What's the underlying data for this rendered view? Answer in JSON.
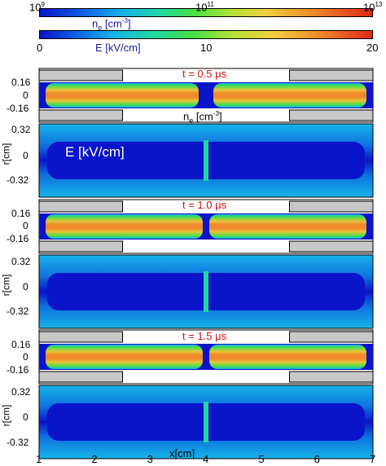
{
  "chart_data": {
    "type": "heatmap",
    "colorbars": [
      {
        "title": "n",
        "title_sub": "e",
        "title_unit": " [cm",
        "title_sup": "-3",
        "title_close": "]",
        "ticks": [
          {
            "base": "10",
            "exp": "9"
          },
          {
            "base": "10",
            "exp": "11"
          },
          {
            "base": "10",
            "exp": "13"
          }
        ],
        "scale": "log",
        "range": [
          1000000000.0,
          10000000000000.0
        ]
      },
      {
        "title": "E [kV/cm]",
        "ticks": [
          "0",
          "10",
          "20"
        ],
        "scale": "linear",
        "range": [
          0,
          20
        ]
      }
    ],
    "x_axis": {
      "label": "x[cm]",
      "range": [
        1,
        7
      ],
      "ticks": [
        "1",
        "2",
        "3",
        "4",
        "5",
        "6",
        "7"
      ]
    },
    "panels": [
      {
        "time_label": "t = 0.5 μs",
        "ne": {
          "ylabels": [
            "0.16",
            "0",
            "-0.16"
          ],
          "unit_label": {
            "n": "n",
            "sub": "e",
            "unit": " [cm",
            "sup": "-3",
            "close": "]"
          }
        },
        "E": {
          "ylabels": [
            "0.32",
            "0",
            "-0.32"
          ],
          "ylabel": "r[cm]",
          "field_label": "E [kV/cm]"
        }
      },
      {
        "time_label": "t = 1.0 μs",
        "ne": {
          "ylabels": [
            "0.16",
            "0",
            "-0.16"
          ]
        },
        "E": {
          "ylabels": [
            "0.32",
            "0",
            "-0.32"
          ],
          "ylabel": "r[cm]"
        }
      },
      {
        "time_label": "t = 1.5 μs",
        "ne": {
          "ylabels": [
            "0.16",
            "0",
            "-0.16"
          ]
        },
        "E": {
          "ylabels": [
            "0.32",
            "0",
            "-0.32"
          ],
          "ylabel": "r[cm]"
        }
      }
    ],
    "electrodes": {
      "left_x": [
        1,
        2.5
      ],
      "right_x": [
        5.5,
        7
      ]
    },
    "colors": {
      "plasma_core": "#f08a2a",
      "plasma_edge": "#e8c43a",
      "plasma_fringe": "#48e046",
      "background": "#0a14c8",
      "electrode": "#c8c8c8",
      "field_high": "#16b4e8",
      "field_mid": "#20d8a0"
    }
  }
}
